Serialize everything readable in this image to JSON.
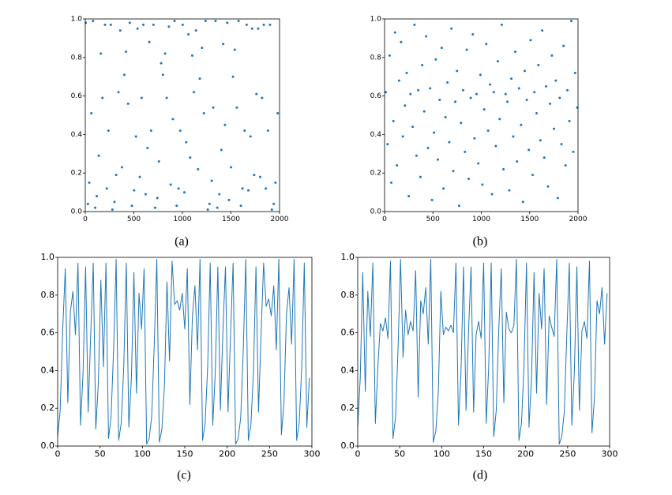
{
  "chart_data": [
    {
      "type": "scatter",
      "caption": "(a)",
      "color": "#1f77b4",
      "grid": false,
      "xlim": [
        0,
        2000
      ],
      "ylim": [
        0,
        1
      ],
      "xticks": [
        0,
        500,
        1000,
        1500,
        2000
      ],
      "yticks": [
        {
          "value": 0,
          "label": "0.0"
        },
        {
          "value": 0.2,
          "label": "0.2"
        },
        {
          "value": 0.4,
          "label": "0.4"
        },
        {
          "value": 0.6,
          "label": "0.6"
        },
        {
          "value": 0.8,
          "label": "0.8"
        },
        {
          "value": 1,
          "label": "1.0"
        }
      ],
      "x": [
        5,
        27,
        41,
        63,
        80,
        102,
        118,
        139,
        160,
        177,
        203,
        221,
        238,
        262,
        279,
        301,
        318,
        342,
        360,
        377,
        402,
        419,
        441,
        458,
        480,
        503,
        522,
        538,
        561,
        580,
        598,
        621,
        640,
        659,
        678,
        702,
        719,
        742,
        758,
        781,
        799,
        822,
        838,
        861,
        879,
        902,
        919,
        941,
        960,
        978,
        1003,
        1020,
        1039,
        1062,
        1080,
        1101,
        1118,
        1140,
        1161,
        1179,
        1202,
        1221,
        1238,
        1261,
        1279,
        1302,
        1318,
        1341,
        1359,
        1380,
        1401,
        1420,
        1438,
        1462,
        1479,
        1501,
        1521,
        1539,
        1560,
        1578,
        1602,
        1619,
        1640,
        1661,
        1679,
        1701,
        1718,
        1739,
        1762,
        1780,
        1801,
        1820,
        1838,
        1859,
        1880,
        1902,
        1921,
        1940,
        1958,
        1981
      ],
      "values": [
        0.98,
        0.04,
        0.15,
        0.51,
        0.99,
        0.02,
        0.08,
        0.29,
        0.82,
        0.59,
        0.97,
        0.12,
        0.42,
        0.97,
        0.01,
        0.05,
        0.19,
        0.62,
        0.94,
        0.23,
        0.71,
        0.83,
        0.56,
        0.98,
        0.03,
        0.11,
        0.39,
        0.95,
        0.18,
        0.59,
        0.97,
        0.09,
        0.33,
        0.88,
        0.42,
        0.97,
        0.02,
        0.07,
        0.26,
        0.77,
        0.71,
        0.82,
        0.59,
        0.96,
        0.14,
        0.48,
        0.99,
        0.03,
        0.12,
        0.42,
        0.97,
        0.1,
        0.36,
        0.92,
        0.28,
        0.81,
        0.62,
        0.94,
        0.22,
        0.69,
        0.85,
        0.51,
        0.99,
        0.01,
        0.04,
        0.16,
        0.54,
        0.99,
        0.02,
        0.09,
        0.32,
        0.87,
        0.45,
        0.98,
        0.06,
        0.23,
        0.7,
        0.84,
        0.54,
        0.99,
        0.03,
        0.12,
        0.42,
        0.97,
        0.11,
        0.39,
        0.95,
        0.19,
        0.61,
        0.95,
        0.18,
        0.59,
        0.97,
        0.12,
        0.42,
        0.97,
        0.01,
        0.04,
        0.15,
        0.51
      ]
    },
    {
      "type": "scatter",
      "caption": "(b)",
      "color": "#1f77b4",
      "grid": false,
      "xlim": [
        0,
        2000
      ],
      "ylim": [
        0,
        1
      ],
      "xticks": [
        0,
        500,
        1000,
        1500,
        2000
      ],
      "yticks": [
        {
          "value": 0,
          "label": "0.0"
        },
        {
          "value": 0.2,
          "label": "0.2"
        },
        {
          "value": 0.4,
          "label": "0.4"
        },
        {
          "value": 0.6,
          "label": "0.6"
        },
        {
          "value": 0.8,
          "label": "0.8"
        },
        {
          "value": 1,
          "label": "1.0"
        }
      ],
      "x": [
        12,
        31,
        52,
        70,
        91,
        109,
        128,
        151,
        170,
        189,
        210,
        229,
        250,
        268,
        291,
        309,
        330,
        348,
        371,
        389,
        410,
        430,
        449,
        471,
        490,
        511,
        529,
        551,
        570,
        591,
        609,
        630,
        650,
        669,
        691,
        710,
        731,
        749,
        771,
        790,
        812,
        831,
        849,
        870,
        891,
        912,
        930,
        951,
        969,
        991,
        1012,
        1030,
        1051,
        1071,
        1090,
        1111,
        1129,
        1150,
        1171,
        1190,
        1211,
        1229,
        1251,
        1270,
        1290,
        1311,
        1330,
        1351,
        1369,
        1390,
        1411,
        1431,
        1449,
        1470,
        1491,
        1510,
        1531,
        1549,
        1571,
        1590,
        1611,
        1630,
        1651,
        1669,
        1690,
        1711,
        1730,
        1751,
        1770,
        1791,
        1811,
        1829,
        1850,
        1871,
        1890,
        1911,
        1930,
        1951,
        1970,
        1992
      ],
      "values": [
        0.62,
        0.35,
        0.81,
        0.15,
        0.47,
        0.93,
        0.24,
        0.68,
        0.88,
        0.39,
        0.55,
        0.72,
        0.08,
        0.61,
        0.44,
        0.97,
        0.29,
        0.63,
        0.18,
        0.76,
        0.52,
        0.91,
        0.33,
        0.64,
        0.06,
        0.41,
        0.79,
        0.27,
        0.58,
        0.85,
        0.12,
        0.49,
        0.67,
        0.36,
        0.95,
        0.21,
        0.57,
        0.73,
        0.03,
        0.46,
        0.63,
        0.31,
        0.84,
        0.17,
        0.59,
        0.92,
        0.38,
        0.61,
        0.25,
        0.71,
        0.14,
        0.53,
        0.87,
        0.42,
        0.66,
        0.09,
        0.62,
        0.34,
        0.78,
        0.48,
        0.97,
        0.22,
        0.61,
        0.57,
        0.11,
        0.69,
        0.39,
        0.83,
        0.26,
        0.64,
        0.45,
        0.05,
        0.73,
        0.58,
        0.32,
        0.89,
        0.19,
        0.62,
        0.51,
        0.76,
        0.37,
        0.94,
        0.28,
        0.65,
        0.13,
        0.56,
        0.81,
        0.43,
        0.68,
        0.07,
        0.59,
        0.35,
        0.86,
        0.24,
        0.63,
        0.47,
        0.99,
        0.31,
        0.72,
        0.54
      ]
    },
    {
      "type": "line",
      "caption": "(c)",
      "color": "#1f77b4",
      "grid": false,
      "xlim": [
        0,
        300
      ],
      "ylim": [
        0,
        1
      ],
      "xticks": [
        0,
        50,
        100,
        150,
        200,
        250,
        300
      ],
      "yticks": [
        {
          "value": 0,
          "label": "0.0"
        },
        {
          "value": 0.2,
          "label": "0.2"
        },
        {
          "value": 0.4,
          "label": "0.4"
        },
        {
          "value": 0.6,
          "label": "0.6"
        },
        {
          "value": 0.8,
          "label": "0.8"
        },
        {
          "value": 1,
          "label": "1.0"
        }
      ],
      "x": [
        0,
        3,
        6,
        9,
        12,
        15,
        18,
        21,
        24,
        27,
        30,
        33,
        36,
        39,
        42,
        45,
        48,
        51,
        54,
        57,
        60,
        63,
        66,
        69,
        72,
        75,
        78,
        81,
        84,
        87,
        90,
        93,
        96,
        99,
        102,
        105,
        108,
        111,
        114,
        117,
        120,
        123,
        126,
        129,
        132,
        135,
        138,
        141,
        144,
        147,
        150,
        153,
        156,
        159,
        162,
        165,
        168,
        171,
        174,
        177,
        180,
        183,
        186,
        189,
        192,
        195,
        198,
        201,
        204,
        207,
        210,
        213,
        216,
        219,
        222,
        225,
        228,
        231,
        234,
        237,
        240,
        243,
        246,
        249,
        252,
        255,
        258,
        261,
        264,
        267,
        270,
        273,
        276,
        279,
        282,
        285,
        288,
        291,
        294,
        297
      ],
      "values": [
        0.05,
        0.19,
        0.62,
        0.94,
        0.23,
        0.71,
        0.82,
        0.59,
        0.97,
        0.11,
        0.39,
        0.95,
        0.18,
        0.59,
        0.97,
        0.09,
        0.33,
        0.88,
        0.42,
        0.97,
        0.04,
        0.15,
        0.51,
        0.99,
        0.03,
        0.12,
        0.42,
        0.97,
        0.1,
        0.36,
        0.92,
        0.28,
        0.81,
        0.62,
        0.94,
        0.01,
        0.04,
        0.16,
        0.54,
        0.99,
        0.02,
        0.09,
        0.32,
        0.87,
        0.45,
        0.98,
        0.75,
        0.77,
        0.72,
        0.81,
        0.62,
        0.94,
        0.22,
        0.69,
        0.85,
        0.51,
        0.99,
        0.03,
        0.12,
        0.42,
        0.97,
        0.11,
        0.39,
        0.95,
        0.19,
        0.61,
        0.95,
        0.18,
        0.59,
        0.97,
        0.01,
        0.04,
        0.15,
        0.51,
        0.99,
        0.03,
        0.11,
        0.39,
        0.95,
        0.18,
        0.59,
        0.97,
        0.74,
        0.78,
        0.69,
        0.85,
        0.51,
        0.99,
        0.06,
        0.23,
        0.7,
        0.84,
        0.54,
        0.99,
        0.03,
        0.12,
        0.42,
        0.97,
        0.1,
        0.36
      ]
    },
    {
      "type": "line",
      "caption": "(d)",
      "color": "#1f77b4",
      "grid": false,
      "xlim": [
        0,
        300
      ],
      "ylim": [
        0,
        1
      ],
      "xticks": [
        0,
        50,
        100,
        150,
        200,
        250,
        300
      ],
      "yticks": [
        {
          "value": 0,
          "label": "0.0"
        },
        {
          "value": 0.2,
          "label": "0.2"
        },
        {
          "value": 0.4,
          "label": "0.4"
        },
        {
          "value": 0.6,
          "label": "0.6"
        },
        {
          "value": 0.8,
          "label": "0.8"
        },
        {
          "value": 1,
          "label": "1.0"
        }
      ],
      "x": [
        0,
        3,
        6,
        9,
        12,
        15,
        18,
        21,
        24,
        27,
        30,
        33,
        36,
        39,
        42,
        45,
        48,
        51,
        54,
        57,
        60,
        63,
        66,
        69,
        72,
        75,
        78,
        81,
        84,
        87,
        90,
        93,
        96,
        99,
        102,
        105,
        108,
        111,
        114,
        117,
        120,
        123,
        126,
        129,
        132,
        135,
        138,
        141,
        144,
        147,
        150,
        153,
        156,
        159,
        162,
        165,
        168,
        171,
        174,
        177,
        180,
        183,
        186,
        189,
        192,
        195,
        198,
        201,
        204,
        207,
        210,
        213,
        216,
        219,
        222,
        225,
        228,
        231,
        234,
        237,
        240,
        243,
        246,
        249,
        252,
        255,
        258,
        261,
        264,
        267,
        270,
        273,
        276,
        279,
        282,
        285,
        288,
        291,
        294,
        297
      ],
      "values": [
        0.1,
        0.36,
        0.92,
        0.29,
        0.82,
        0.58,
        0.97,
        0.12,
        0.42,
        0.65,
        0.61,
        0.68,
        0.57,
        0.98,
        0.04,
        0.15,
        0.51,
        0.99,
        0.47,
        0.72,
        0.59,
        0.66,
        0.61,
        0.93,
        0.26,
        0.77,
        0.7,
        0.84,
        0.54,
        0.99,
        0.02,
        0.08,
        0.29,
        0.82,
        0.59,
        0.63,
        0.61,
        0.64,
        0.6,
        0.97,
        0.11,
        0.39,
        0.95,
        0.19,
        0.61,
        0.95,
        0.18,
        0.59,
        0.66,
        0.57,
        0.97,
        0.12,
        0.42,
        0.97,
        0.05,
        0.19,
        0.62,
        0.94,
        0.23,
        0.71,
        0.62,
        0.6,
        0.64,
        0.99,
        0.03,
        0.12,
        0.42,
        0.97,
        0.1,
        0.36,
        0.92,
        0.28,
        0.81,
        0.62,
        0.94,
        0.22,
        0.69,
        0.63,
        0.58,
        0.99,
        0.01,
        0.05,
        0.18,
        0.59,
        0.97,
        0.11,
        0.39,
        0.95,
        0.19,
        0.61,
        0.66,
        0.57,
        0.98,
        0.07,
        0.26,
        0.77,
        0.7,
        0.84,
        0.54,
        0.81
      ]
    }
  ]
}
